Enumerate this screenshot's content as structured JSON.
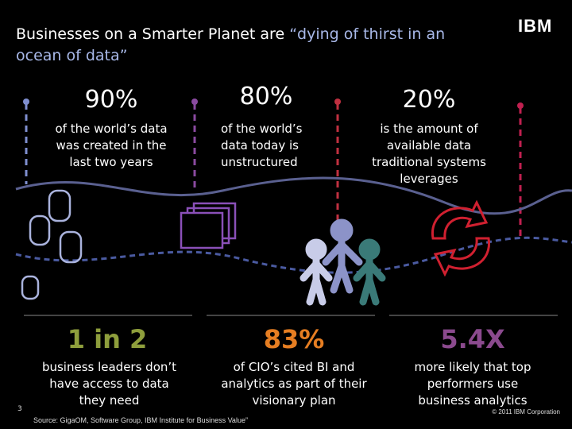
{
  "header": {
    "title_lead": "Businesses on a Smarter Planet are",
    "title_quote": "“dying of thirst in an ocean of data”",
    "logo": "IBM"
  },
  "top_stats": [
    {
      "figure": "90%",
      "text": "of the world’s data was created in the last two years"
    },
    {
      "figure": "80%",
      "text": "of the world’s data today is unstructured"
    },
    {
      "figure": "20%",
      "text": "is the amount of available data traditional systems leverages"
    }
  ],
  "bottom_stats": [
    {
      "figure": "1 in 2",
      "text": "business leaders don’t have access to data they need"
    },
    {
      "figure": "83%",
      "text": "of CIO’s cited BI and analytics as part of their visionary plan"
    },
    {
      "figure": "5.4X",
      "text": "more likely that top performers use business analytics"
    }
  ],
  "footer": {
    "page": "3",
    "source": "Source: GigaOM, Software Group, IBM Institute for Business Value”",
    "copyright": "© 2011 IBM Corporation"
  }
}
